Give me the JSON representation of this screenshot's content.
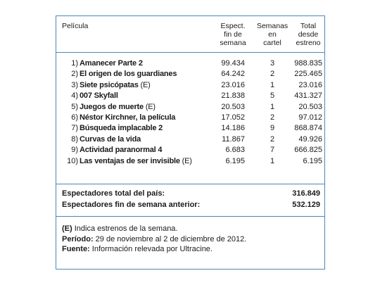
{
  "headers": {
    "pelicula": "Película",
    "espect": [
      "Espect.",
      "fin de",
      "semana"
    ],
    "semanas": [
      "Semanas",
      "en",
      "cartel"
    ],
    "total": [
      "Total",
      "desde",
      "estreno"
    ]
  },
  "rows": [
    {
      "num": "1)",
      "title": "Amanecer Parte 2",
      "tag": "",
      "espect": "99.434",
      "semanas": "3",
      "total": "988.835"
    },
    {
      "num": "2)",
      "title": "El origen de los guardianes",
      "tag": "",
      "espect": "64.242",
      "semanas": "2",
      "total": "225.465"
    },
    {
      "num": "3)",
      "title": "Siete psicópatas",
      "tag": "(E)",
      "espect": "23.016",
      "semanas": "1",
      "total": "23.016"
    },
    {
      "num": "4)",
      "title": "007 Skyfall",
      "tag": "",
      "espect": "21.838",
      "semanas": "5",
      "total": "431.327"
    },
    {
      "num": "5)",
      "title": "Juegos de muerte",
      "tag": "(E)",
      "espect": "20.503",
      "semanas": "1",
      "total": "20.503"
    },
    {
      "num": "6)",
      "title": "Néstor Kirchner, la película",
      "tag": "",
      "espect": "17.052",
      "semanas": "2",
      "total": "97.012"
    },
    {
      "num": "7)",
      "title": "Búsqueda implacable 2",
      "tag": "",
      "espect": "14.186",
      "semanas": "9",
      "total": "868.874"
    },
    {
      "num": "8)",
      "title": "Curvas de la vida",
      "tag": "",
      "espect": "11.867",
      "semanas": "2",
      "total": "49.926"
    },
    {
      "num": "9)",
      "title": "Actividad paranormal 4",
      "tag": "",
      "espect": "6.683",
      "semanas": "7",
      "total": "666.825"
    },
    {
      "num": "10)",
      "title": "Las ventajas de ser invisible",
      "tag": "(E)",
      "espect": "6.195",
      "semanas": "1",
      "total": "6.195"
    }
  ],
  "totals": [
    {
      "label": "Espectadores total del país:",
      "value": "316.849"
    },
    {
      "label": "Espectadores fin de semana anterior:",
      "value": "532.129"
    }
  ],
  "notes": [
    {
      "bold": "(E)",
      "text": " Indica estrenos de la semana."
    },
    {
      "bold": "Período:",
      "text": " 29 de noviembre al 2 de diciembre de 2012."
    },
    {
      "bold": "Fuente:",
      "text": " Información relevada por Ultracine."
    }
  ],
  "colors": {
    "rule": "#4f86b8",
    "text": "#1a1a1a"
  }
}
